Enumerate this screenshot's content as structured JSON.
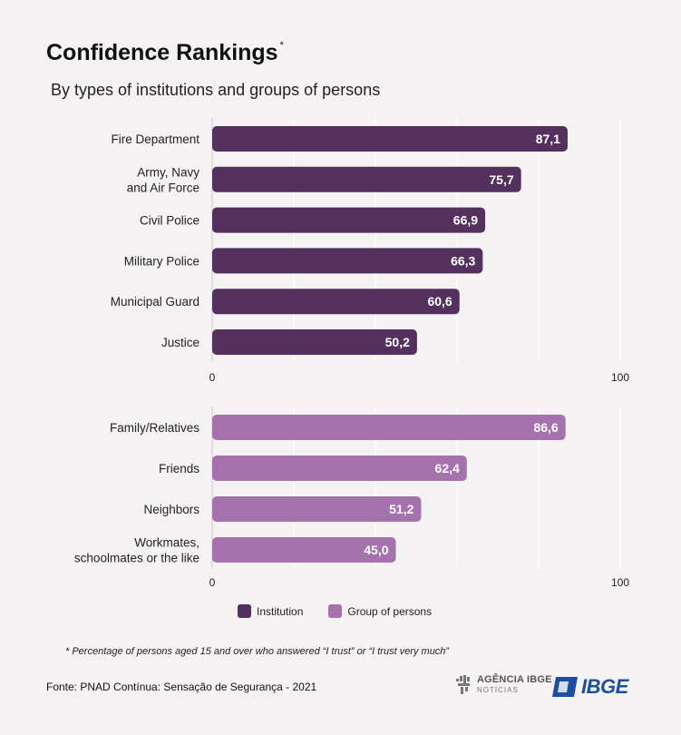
{
  "title": "Confidence Rankings",
  "title_mark": "*",
  "subtitle": "By types of institutions and groups of persons",
  "colors": {
    "institution": "#54305f",
    "group": "#a672ae",
    "background": "#f4f2f3"
  },
  "chart_data": [
    {
      "type": "bar",
      "orientation": "horizontal",
      "series_key": "institution",
      "categories": [
        "Fire Department",
        "Army, Navy\nand Air Force",
        "Civil Police",
        "Military Police",
        "Municipal Guard",
        "Justice"
      ],
      "values": [
        87.1,
        75.7,
        66.9,
        66.3,
        60.6,
        50.2
      ],
      "value_labels": [
        "87,1",
        "75,7",
        "66,9",
        "66,3",
        "60,6",
        "50,2"
      ],
      "xlim": [
        0,
        100
      ],
      "tick_labels": [
        "0",
        "100"
      ],
      "grid": true
    },
    {
      "type": "bar",
      "orientation": "horizontal",
      "series_key": "group",
      "categories": [
        "Family/Relatives",
        "Friends",
        "Neighbors",
        "Workmates,\nschoolmates or the like"
      ],
      "values": [
        86.6,
        62.4,
        51.2,
        45.0
      ],
      "value_labels": [
        "86,6",
        "62,4",
        "51,2",
        "45,0"
      ],
      "xlim": [
        0,
        100
      ],
      "tick_labels": [
        "0",
        "100"
      ],
      "grid": true
    }
  ],
  "legend": {
    "institution": "Institution",
    "group": "Group of persons"
  },
  "footnote": "* Percentage of persons aged 15 and over who answered “I trust” or “I trust very much”",
  "source": "Fonte: PNAD Contínua: Sensação de Segurança - 2021",
  "logos": {
    "agencia_line1": "AGÊNCIA IBGE",
    "agencia_line2": "NOTÍCIAS",
    "ibge": "IBGE"
  }
}
